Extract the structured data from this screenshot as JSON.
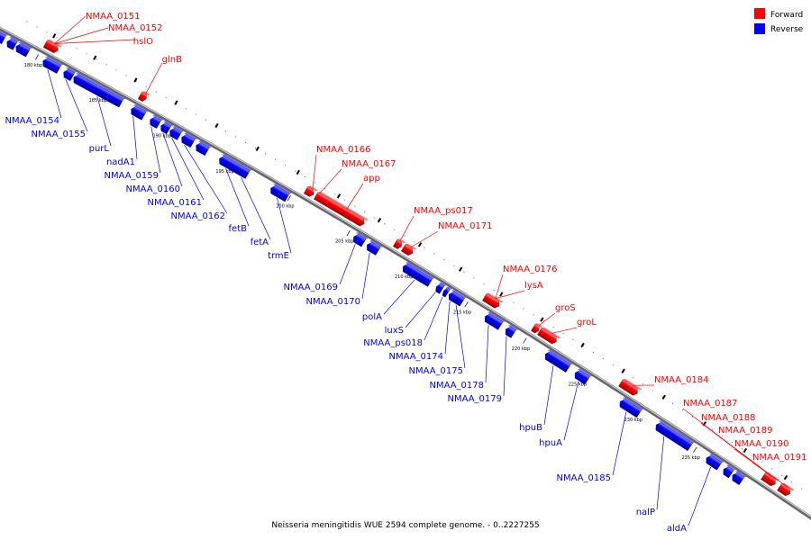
{
  "caption": "Neisseria meningitidis WUE 2594 complete genome. - 0..2227255",
  "legend": [
    {
      "label": "Forward",
      "color": "#ff0000"
    },
    {
      "label": "Reverse",
      "color": "#0000ff"
    }
  ],
  "colors": {
    "forward": "#ff0000",
    "reverse": "#0000ff",
    "backbone": "#999999"
  },
  "ticks": [
    "180 kbp",
    "185 kbp",
    "190 kbp",
    "195 kbp",
    "200 kbp",
    "205 kbp",
    "210 kbp",
    "215 kbp",
    "220 kbp",
    "225 kbp",
    "230 kbp",
    "235 kbp"
  ],
  "forward_genes": [
    "NMAA_0151",
    "NMAA_0152",
    "hslO",
    "glnB",
    "NMAA_0166",
    "NMAA_0167",
    "app",
    "NMAA_ps017",
    "NMAA_0171",
    "NMAA_0176",
    "lysA",
    "groS",
    "groL",
    "NMAA_0184",
    "NMAA_0187",
    "NMAA_0188",
    "NMAA_0189",
    "NMAA_0190",
    "NMAA_0191"
  ],
  "reverse_genes": [
    "NMAA_0154",
    "NMAA_0155",
    "purL",
    "nadA1",
    "NMAA_0159",
    "NMAA_0160",
    "NMAA_0161",
    "NMAA_0162",
    "fetB",
    "fetA",
    "trmE",
    "NMAA_0169",
    "NMAA_0170",
    "polA",
    "luxS",
    "NMAA_ps018",
    "NMAA_0174",
    "NMAA_0175",
    "NMAA_0178",
    "NMAA_0179",
    "hpuB",
    "hpuA",
    "NMAA_0185",
    "nalP",
    "aldA"
  ]
}
